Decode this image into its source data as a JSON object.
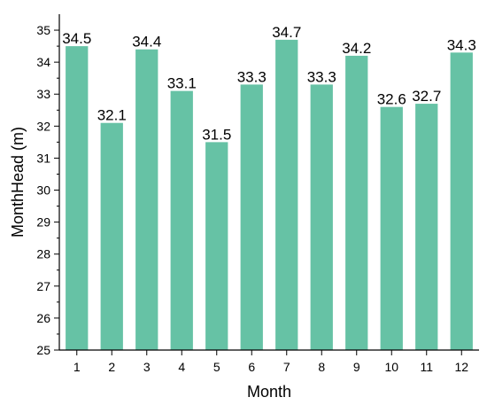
{
  "chart_data": {
    "type": "bar",
    "categories": [
      "1",
      "2",
      "3",
      "4",
      "5",
      "6",
      "7",
      "8",
      "9",
      "10",
      "11",
      "12"
    ],
    "values": [
      34.5,
      32.1,
      34.4,
      33.1,
      31.5,
      33.3,
      34.7,
      33.3,
      34.2,
      32.6,
      32.7,
      34.3
    ],
    "data_labels": [
      "34.5",
      "32.1",
      "34.4",
      "33.1",
      "31.5",
      "33.3",
      "34.7",
      "33.3",
      "34.2",
      "32.6",
      "32.7",
      "34.3"
    ],
    "xlabel": "Month",
    "ylabel": "MonthHead (m)",
    "ylim": [
      25,
      35.5
    ],
    "yticks": [
      25,
      26,
      27,
      28,
      29,
      30,
      31,
      32,
      33,
      34,
      35
    ],
    "grid": false,
    "bar_color": "#66c2a5"
  }
}
